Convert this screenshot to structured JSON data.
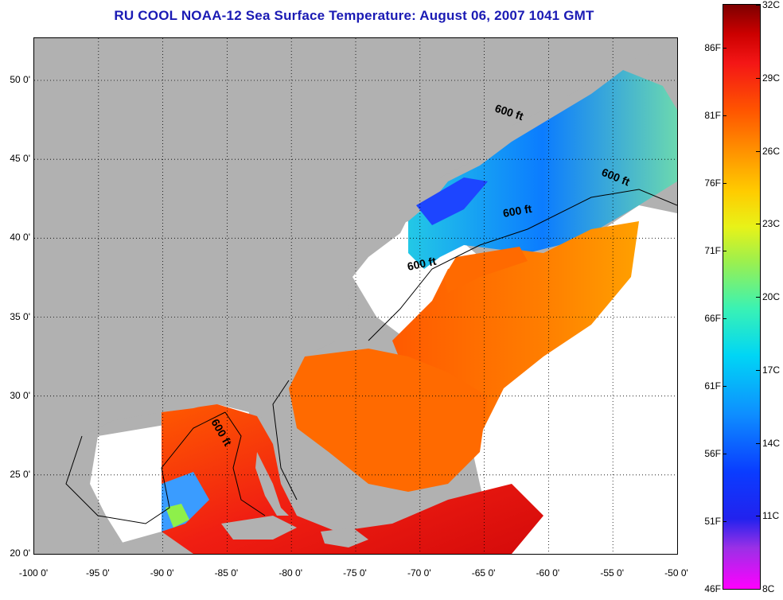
{
  "title": "RU COOL  NOAA-12  Sea Surface Temperature:  August 06, 2007 1041 GMT",
  "axes": {
    "x_labels": [
      "-100 0'",
      "-95 0'",
      "-90 0'",
      "-85 0'",
      "-80 0'",
      "-75 0'",
      "-70 0'",
      "-65 0'",
      "-60 0'",
      "-55 0'",
      "-50 0'"
    ],
    "y_labels": [
      "50 0'",
      "45 0'",
      "40 0'",
      "35 0'",
      "30 0'",
      "25 0'",
      "20 0'"
    ]
  },
  "colorbar": {
    "fahrenheit_labels": [
      "86F",
      "81F",
      "76F",
      "71F",
      "66F",
      "61F",
      "56F",
      "51F",
      "46F"
    ],
    "celsius_labels": [
      "32C",
      "29C",
      "26C",
      "23C",
      "20C",
      "17C",
      "14C",
      "11C",
      "8C"
    ],
    "colors": {
      "min": "#ff00ff",
      "low": "#0a3cff",
      "mid": "#e8f218",
      "high": "#f41616",
      "max": "#7e0000"
    }
  },
  "annotations": {
    "isobath_label": "600 ft"
  },
  "colors": {
    "land": "#b1b1b1",
    "no_data": "#ffffff",
    "title": "#1a1ab4"
  }
}
